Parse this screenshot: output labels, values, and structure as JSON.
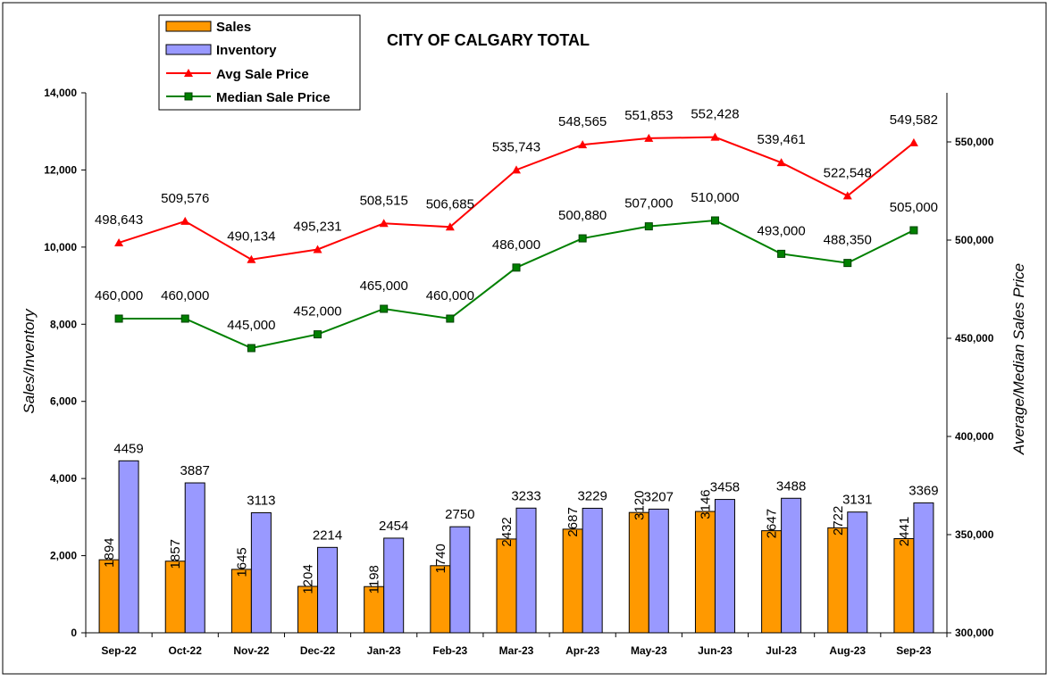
{
  "chart_data": {
    "type": "bar",
    "title": "CITY OF CALGARY TOTAL",
    "ylabel_left": "Sales/Inventory",
    "ylabel_right": "Average/Median Sales Price",
    "categories": [
      "Sep-22",
      "Oct-22",
      "Nov-22",
      "Dec-22",
      "Jan-23",
      "Feb-23",
      "Mar-23",
      "Apr-23",
      "May-23",
      "Jun-23",
      "Jul-23",
      "Aug-23",
      "Sep-23"
    ],
    "ylim_left": [
      0,
      14000
    ],
    "yticks_left": [
      "0",
      "2,000",
      "4,000",
      "6,000",
      "8,000",
      "10,000",
      "12,000",
      "14,000"
    ],
    "ylim_right": [
      300000,
      575000
    ],
    "yticks_right": [
      "300,000",
      "350,000",
      "400,000",
      "450,000",
      "500,000",
      "550,000"
    ],
    "bars": [
      {
        "name": "Sales",
        "color": "#FF9900",
        "values": [
          1894,
          1857,
          1645,
          1204,
          1198,
          1740,
          2432,
          2687,
          3120,
          3146,
          2647,
          2722,
          2441
        ],
        "labels": [
          "1894",
          "1857",
          "1645",
          "1204",
          "1198",
          "1740",
          "2432",
          "2687",
          "3120",
          "3146",
          "2647",
          "2722",
          "2441"
        ]
      },
      {
        "name": "Inventory",
        "color": "#9999FF",
        "values": [
          4459,
          3887,
          3113,
          2214,
          2454,
          2750,
          3233,
          3229,
          3207,
          3458,
          3488,
          3131,
          3369
        ],
        "labels": [
          "4459",
          "3887",
          "3113",
          "2214",
          "2454",
          "2750",
          "3233",
          "3229",
          "3207",
          "3458",
          "3488",
          "3131",
          "3369"
        ]
      }
    ],
    "lines": [
      {
        "name": "Avg Sale Price",
        "color": "#FF0000",
        "marker": "triangle",
        "values": [
          498643,
          509576,
          490134,
          495231,
          508515,
          506685,
          535743,
          548565,
          551853,
          552428,
          539461,
          522548,
          549582
        ],
        "labels": [
          "498,643",
          "509,576",
          "490,134",
          "495,231",
          "508,515",
          "506,685",
          "535,743",
          "548,565",
          "551,853",
          "552,428",
          "539,461",
          "522,548",
          "549,582"
        ]
      },
      {
        "name": "Median Sale Price",
        "color": "#008000",
        "marker": "square",
        "values": [
          460000,
          460000,
          445000,
          452000,
          465000,
          460000,
          486000,
          500880,
          507000,
          510000,
          493000,
          488350,
          505000
        ],
        "labels": [
          "460,000",
          "460,000",
          "445,000",
          "452,000",
          "465,000",
          "460,000",
          "486,000",
          "500,880",
          "507,000",
          "510,000",
          "493,000",
          "488,350",
          "505,000"
        ]
      }
    ],
    "legend_position": "top-left",
    "grid": false
  }
}
